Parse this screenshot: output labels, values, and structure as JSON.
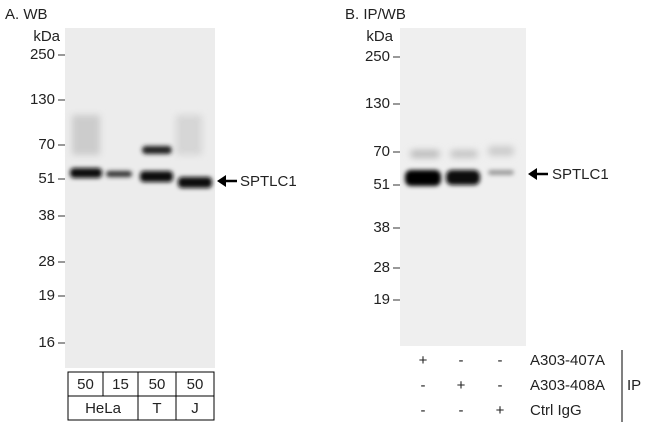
{
  "panels": [
    {
      "title": "A. WB",
      "unit": "kDa",
      "markers": [
        250,
        130,
        70,
        51,
        38,
        28,
        19,
        16
      ],
      "target": "SPTLC1",
      "lanes": [
        50,
        15,
        50,
        50
      ],
      "groups": [
        "HeLa",
        "T",
        "J"
      ]
    },
    {
      "title": "B. IP/WB",
      "unit": "kDa",
      "markers": [
        250,
        130,
        70,
        51,
        38,
        28,
        19
      ],
      "target": "SPTLC1",
      "rows": [
        {
          "signs": [
            "+",
            "-",
            "-"
          ],
          "label": "A303-407A"
        },
        {
          "signs": [
            "-",
            "+",
            "-"
          ],
          "label": "A303-408A"
        },
        {
          "signs": [
            "-",
            "-",
            "+"
          ],
          "label": "Ctrl IgG"
        }
      ],
      "group": "IP"
    }
  ]
}
